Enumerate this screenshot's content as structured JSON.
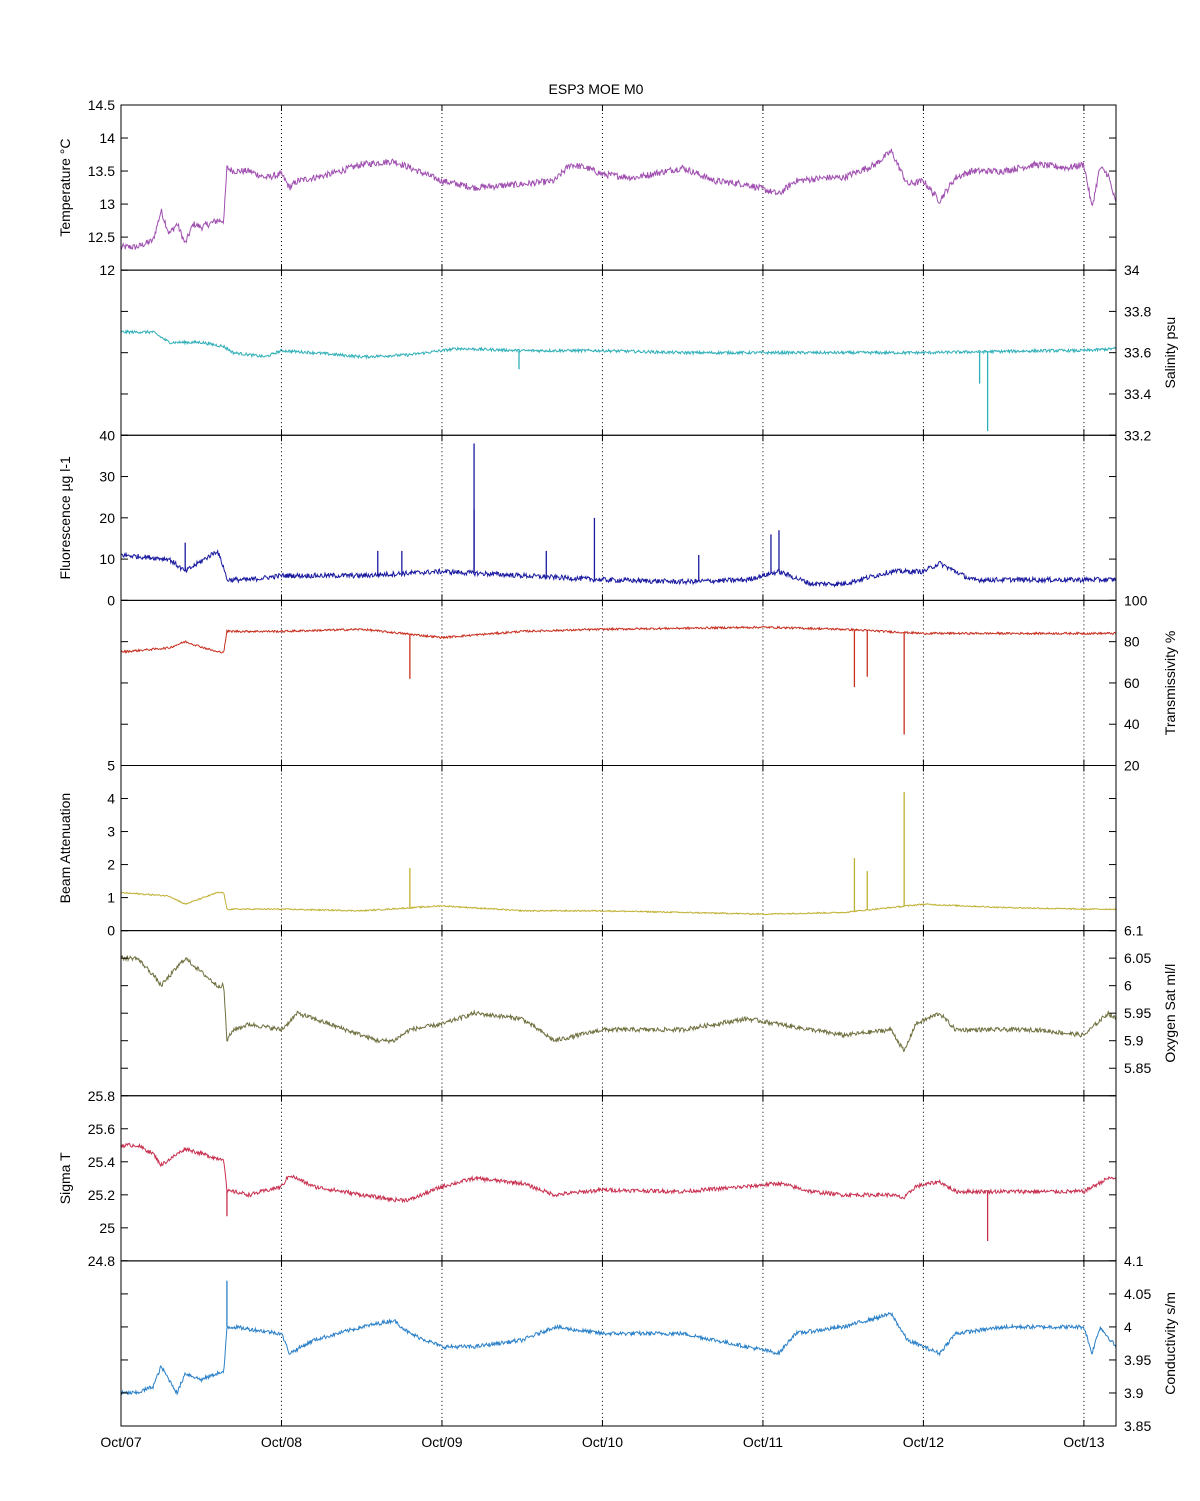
{
  "chart_data": {
    "type": "line",
    "title": "ESP3 MOE   M0",
    "x_axis": {
      "range": [
        "Oct/07",
        "Oct/13 + 0.2 day"
      ],
      "tick_labels": [
        "Oct/07",
        "Oct/08",
        "Oct/09",
        "Oct/10",
        "Oct/11",
        "Oct/12",
        "Oct/13"
      ],
      "grid": "vertical dotted at each day tick"
    },
    "panels": [
      {
        "ylabel": "Temperature °C",
        "axis_side": "left",
        "ylim": [
          12,
          14.5
        ],
        "ticks": [
          "12",
          "12.5",
          "13",
          "13.5",
          "14",
          "14.5"
        ],
        "color": "#a050b0",
        "noise": 0.05,
        "series": {
          "name": "",
          "x": [
            0,
            0.1,
            0.2,
            0.25,
            0.3,
            0.35,
            0.4,
            0.45,
            0.5,
            0.55,
            0.6,
            0.64,
            0.66,
            0.7,
            0.8,
            0.9,
            1.0,
            1.05,
            1.1,
            1.3,
            1.5,
            1.7,
            1.8,
            2.0,
            2.2,
            2.5,
            2.7,
            2.8,
            2.9,
            3.0,
            3.2,
            3.3,
            3.5,
            3.7,
            3.9,
            4.1,
            4.2,
            4.4,
            4.5,
            4.7,
            4.8,
            4.9,
            5.0,
            5.1,
            5.2,
            5.3,
            5.5,
            5.7,
            5.9,
            6.0,
            6.05,
            6.1,
            6.15,
            6.2
          ],
          "y": [
            12.35,
            12.35,
            12.45,
            12.9,
            12.55,
            12.7,
            12.4,
            12.7,
            12.65,
            12.7,
            12.75,
            12.75,
            13.55,
            13.5,
            13.5,
            13.4,
            13.45,
            13.25,
            13.35,
            13.45,
            13.6,
            13.65,
            13.55,
            13.35,
            13.25,
            13.3,
            13.35,
            13.6,
            13.55,
            13.45,
            13.4,
            13.45,
            13.55,
            13.35,
            13.3,
            13.15,
            13.35,
            13.4,
            13.4,
            13.6,
            13.8,
            13.3,
            13.35,
            13.05,
            13.4,
            13.5,
            13.5,
            13.6,
            13.55,
            13.6,
            12.95,
            13.55,
            13.45,
            13.0
          ]
        },
        "spikes": []
      },
      {
        "ylabel": "Salinity psu",
        "axis_side": "right",
        "ylim": [
          33.2,
          34
        ],
        "ticks": [
          "33.2",
          "33.4",
          "33.6",
          "33.8",
          "34"
        ],
        "color": "#30b0b8",
        "noise": 0.007,
        "series": {
          "name": "",
          "x": [
            0,
            0.2,
            0.3,
            0.5,
            0.64,
            0.7,
            0.9,
            1.0,
            1.2,
            1.5,
            1.8,
            2.1,
            2.5,
            3.0,
            3.5,
            4.0,
            5.0,
            5.8,
            6.0,
            6.2
          ],
          "y": [
            33.7,
            33.7,
            33.65,
            33.65,
            33.63,
            33.6,
            33.58,
            33.61,
            33.6,
            33.58,
            33.59,
            33.62,
            33.61,
            33.61,
            33.6,
            33.6,
            33.6,
            33.61,
            33.61,
            33.62
          ]
        },
        "spikes": [
          {
            "x": 2.48,
            "y": 33.52
          },
          {
            "x": 5.35,
            "y": 33.45
          },
          {
            "x": 5.4,
            "y": 33.22
          }
        ]
      },
      {
        "ylabel": "Fluorescence µg l-1",
        "axis_side": "left",
        "ylim": [
          0,
          40
        ],
        "ticks": [
          "0",
          "10",
          "20",
          "30",
          "40"
        ],
        "color": "#1a1aa0",
        "noise": 0.6,
        "series": {
          "name": "",
          "x": [
            0,
            0.3,
            0.4,
            0.6,
            0.64,
            0.66,
            0.8,
            1.0,
            1.5,
            2.0,
            2.5,
            3.0,
            3.5,
            3.9,
            4.1,
            4.3,
            4.5,
            4.8,
            5.0,
            5.1,
            5.3,
            6.0,
            6.2
          ],
          "y": [
            11,
            10,
            7,
            12,
            8,
            5,
            5,
            6,
            6,
            7,
            6,
            5,
            4.5,
            5,
            7,
            4,
            4,
            7,
            7,
            9,
            5,
            5,
            5
          ]
        },
        "spikes": [
          {
            "x": 0.4,
            "y": 14
          },
          {
            "x": 1.6,
            "y": 12
          },
          {
            "x": 1.75,
            "y": 12
          },
          {
            "x": 2.2,
            "y": 38
          },
          {
            "x": 2.2,
            "y": 22
          },
          {
            "x": 2.65,
            "y": 12
          },
          {
            "x": 2.95,
            "y": 20
          },
          {
            "x": 3.6,
            "y": 11
          },
          {
            "x": 4.05,
            "y": 16
          },
          {
            "x": 4.1,
            "y": 17
          }
        ]
      },
      {
        "ylabel": "Transmissivity %",
        "axis_side": "right",
        "ylim": [
          20,
          100
        ],
        "ticks": [
          "20",
          "40",
          "60",
          "80",
          "100"
        ],
        "color": "#c83020",
        "noise": 0.5,
        "series": {
          "name": "",
          "x": [
            0,
            0.3,
            0.4,
            0.6,
            0.64,
            0.66,
            1.0,
            1.5,
            2.0,
            2.5,
            3.0,
            4.0,
            4.5,
            5.0,
            5.5,
            6.0,
            6.2
          ],
          "y": [
            75,
            77,
            80,
            75,
            75,
            85,
            85,
            86,
            82,
            85,
            86,
            87,
            86,
            84,
            84,
            84,
            84
          ]
        },
        "spikes": [
          {
            "x": 1.8,
            "y": 62
          },
          {
            "x": 4.57,
            "y": 58
          },
          {
            "x": 4.65,
            "y": 63
          },
          {
            "x": 4.88,
            "y": 35
          }
        ]
      },
      {
        "ylabel": "Beam Attenuation",
        "axis_side": "left",
        "ylim": [
          0,
          5
        ],
        "ticks": [
          "0",
          "1",
          "2",
          "3",
          "4",
          "5"
        ],
        "color": "#c0b030",
        "noise": 0.02,
        "series": {
          "name": "",
          "x": [
            0,
            0.3,
            0.4,
            0.6,
            0.64,
            0.66,
            1.0,
            1.5,
            2.0,
            2.5,
            3.0,
            4.0,
            4.5,
            5.0,
            5.5,
            6.0,
            6.2
          ],
          "y": [
            1.15,
            1.05,
            0.8,
            1.15,
            1.15,
            0.65,
            0.65,
            0.6,
            0.75,
            0.6,
            0.6,
            0.5,
            0.55,
            0.8,
            0.7,
            0.65,
            0.65
          ]
        },
        "spikes": [
          {
            "x": 1.8,
            "y": 1.9
          },
          {
            "x": 4.57,
            "y": 2.2
          },
          {
            "x": 4.65,
            "y": 1.8
          },
          {
            "x": 4.88,
            "y": 4.2
          }
        ]
      },
      {
        "ylabel": "Oxygen Sat ml/l",
        "axis_side": "right",
        "ylim": [
          5.8,
          6.1
        ],
        "ticks": [
          "5.85",
          "5.9",
          "5.95",
          "6",
          "6.05",
          "6.1"
        ],
        "color": "#707040",
        "noise": 0.004,
        "series": {
          "name": "",
          "x": [
            0,
            0.1,
            0.2,
            0.25,
            0.4,
            0.6,
            0.64,
            0.66,
            0.7,
            0.8,
            1.0,
            1.1,
            1.4,
            1.6,
            1.7,
            1.8,
            2.0,
            2.2,
            2.5,
            2.7,
            3.0,
            3.5,
            3.9,
            4.1,
            4.3,
            4.5,
            4.8,
            4.88,
            4.95,
            5.1,
            5.2,
            5.4,
            5.7,
            6.0,
            6.15,
            6.2
          ],
          "y": [
            6.05,
            6.05,
            6.02,
            6.0,
            6.05,
            6.0,
            6.0,
            5.9,
            5.92,
            5.93,
            5.92,
            5.95,
            5.92,
            5.9,
            5.9,
            5.92,
            5.93,
            5.95,
            5.94,
            5.9,
            5.92,
            5.92,
            5.94,
            5.93,
            5.92,
            5.91,
            5.92,
            5.88,
            5.93,
            5.95,
            5.92,
            5.92,
            5.92,
            5.91,
            5.95,
            5.94
          ]
        },
        "spikes": []
      },
      {
        "ylabel": "Sigma T",
        "axis_side": "left",
        "ylim": [
          24.8,
          25.8
        ],
        "ticks": [
          "24.8",
          "25",
          "25.2",
          "25.4",
          "25.6",
          "25.8"
        ],
        "color": "#c83050",
        "noise": 0.012,
        "series": {
          "name": "",
          "x": [
            0,
            0.1,
            0.2,
            0.25,
            0.4,
            0.6,
            0.64,
            0.66,
            0.7,
            0.8,
            1.0,
            1.05,
            1.2,
            1.5,
            1.7,
            1.8,
            2.0,
            2.2,
            2.5,
            2.7,
            3.0,
            3.5,
            3.9,
            4.1,
            4.3,
            4.5,
            4.8,
            4.88,
            4.95,
            5.1,
            5.2,
            5.5,
            5.7,
            6.0,
            6.15,
            6.2
          ],
          "y": [
            25.5,
            25.5,
            25.45,
            25.38,
            25.48,
            25.42,
            25.42,
            25.22,
            25.22,
            25.2,
            25.25,
            25.32,
            25.25,
            25.2,
            25.17,
            25.17,
            25.25,
            25.3,
            25.27,
            25.2,
            25.23,
            25.22,
            25.25,
            25.27,
            25.22,
            25.2,
            25.2,
            25.18,
            25.25,
            25.28,
            25.22,
            25.22,
            25.22,
            25.22,
            25.3,
            25.3
          ]
        },
        "spikes": [
          {
            "x": 0.66,
            "y": 25.07
          },
          {
            "x": 5.4,
            "y": 24.92
          }
        ]
      },
      {
        "ylabel": "Conductivity s/m",
        "axis_side": "right",
        "ylim": [
          3.85,
          4.1
        ],
        "ticks": [
          "3.85",
          "3.9",
          "3.95",
          "4",
          "4.05",
          "4.1"
        ],
        "color": "#2a80c8",
        "noise": 0.003,
        "series": {
          "name": "",
          "x": [
            0,
            0.1,
            0.2,
            0.25,
            0.35,
            0.4,
            0.5,
            0.6,
            0.64,
            0.66,
            0.7,
            1.0,
            1.05,
            1.2,
            1.5,
            1.7,
            1.8,
            2.0,
            2.2,
            2.5,
            2.7,
            3.0,
            3.5,
            3.9,
            4.1,
            4.2,
            4.5,
            4.8,
            4.9,
            5.0,
            5.1,
            5.2,
            5.5,
            5.9,
            6.0,
            6.05,
            6.1,
            6.2
          ],
          "y": [
            3.9,
            3.9,
            3.91,
            3.94,
            3.9,
            3.93,
            3.92,
            3.93,
            3.93,
            4.0,
            4.0,
            3.99,
            3.96,
            3.98,
            4.0,
            4.01,
            3.99,
            3.97,
            3.97,
            3.98,
            4.0,
            3.99,
            3.99,
            3.97,
            3.96,
            3.99,
            4.0,
            4.02,
            3.98,
            3.97,
            3.96,
            3.99,
            4.0,
            4.0,
            4.0,
            3.96,
            4.0,
            3.97
          ]
        },
        "spikes": [
          {
            "x": 0.66,
            "y": 4.07
          }
        ]
      }
    ]
  }
}
